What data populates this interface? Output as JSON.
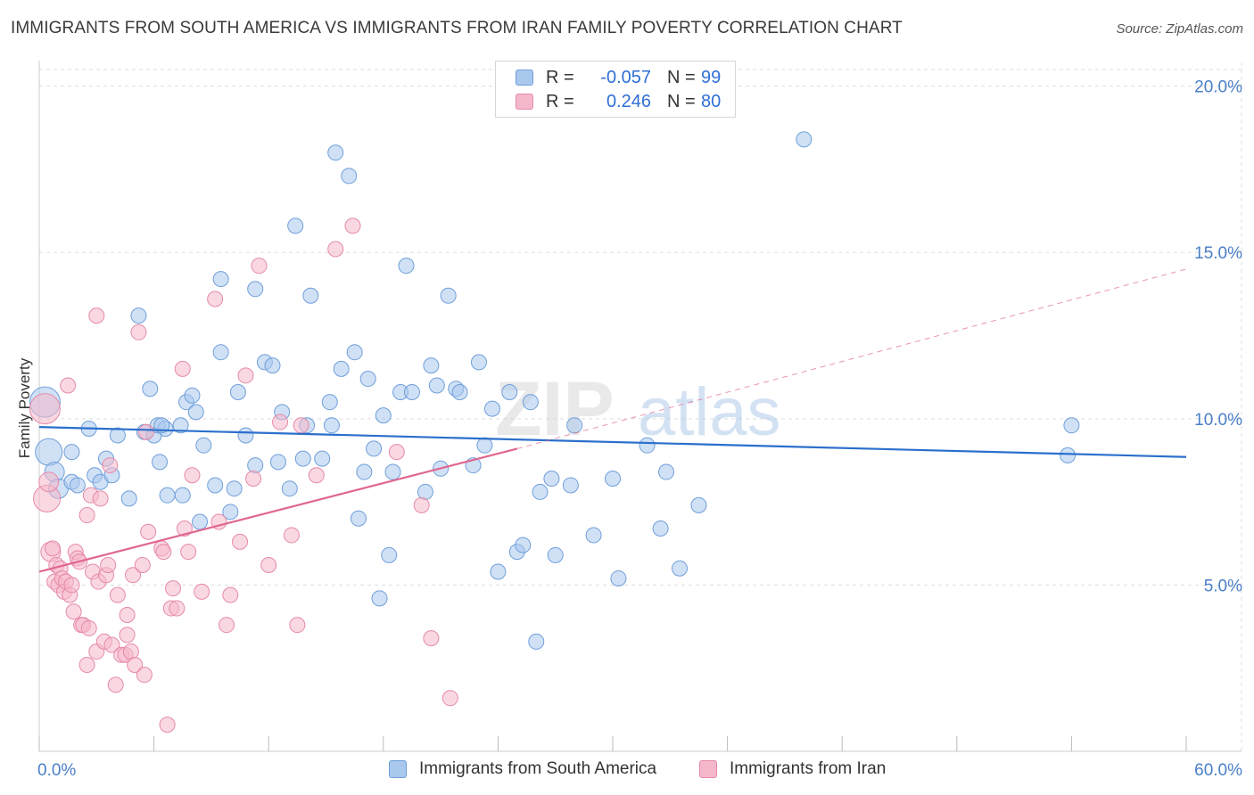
{
  "header": {
    "title": "IMMIGRANTS FROM SOUTH AMERICA VS IMMIGRANTS FROM IRAN FAMILY POVERTY CORRELATION CHART",
    "source": "Source: ZipAtlas.com"
  },
  "watermark": {
    "zip": "ZIP",
    "atlas": "atlas"
  },
  "legend": {
    "rows": [
      {
        "r_label": "R =",
        "r_value": "-0.057",
        "n_label": "N =",
        "n_value": "99"
      },
      {
        "r_label": "R =",
        "r_value": "0.246",
        "n_label": "N =",
        "n_value": "80"
      }
    ]
  },
  "bottom_legend": {
    "series1": "Immigrants from South America",
    "series2": "Immigrants from Iran"
  },
  "colors": {
    "series1_fill": "#a9c8ee",
    "series1_stroke": "#6f9fd9",
    "series1_line": "#2b6fcc",
    "series2_fill": "#f5b8cb",
    "series2_stroke": "#e58aa8",
    "series2_line": "#e0668f",
    "grid": "#dddddd",
    "tick_label": "#4a7fc8"
  },
  "chart_data": {
    "type": "scatter",
    "title": "IMMIGRANTS FROM SOUTH AMERICA VS IMMIGRANTS FROM IRAN FAMILY POVERTY CORRELATION CHART",
    "xlabel": "",
    "ylabel": "Family Poverty",
    "xlim": [
      0,
      60
    ],
    "ylim": [
      0,
      20.5
    ],
    "x_tick_labels": [
      "0.0%",
      "60.0%"
    ],
    "y_ticks": [
      5,
      10,
      15,
      20
    ],
    "y_tick_labels": [
      "5.0%",
      "10.0%",
      "15.0%",
      "20.0%"
    ],
    "grid": true,
    "legend_position": "top-center",
    "series": [
      {
        "name": "Immigrants from South America",
        "R": -0.057,
        "N": 99,
        "trend": {
          "x": [
            0,
            60
          ],
          "y": [
            9.75,
            8.85
          ],
          "style": "solid"
        },
        "points": [
          [
            0.3,
            10.5
          ],
          [
            0.5,
            9.0
          ],
          [
            0.8,
            8.4
          ],
          [
            1.0,
            7.9
          ],
          [
            1.7,
            8.1
          ],
          [
            1.7,
            9.0
          ],
          [
            2.0,
            8.0
          ],
          [
            2.6,
            9.7
          ],
          [
            2.9,
            8.3
          ],
          [
            3.2,
            8.1
          ],
          [
            3.5,
            8.8
          ],
          [
            3.8,
            8.3
          ],
          [
            4.1,
            9.5
          ],
          [
            4.7,
            7.6
          ],
          [
            5.2,
            13.1
          ],
          [
            5.5,
            9.6
          ],
          [
            5.8,
            10.9
          ],
          [
            6.0,
            9.5
          ],
          [
            6.2,
            9.8
          ],
          [
            6.6,
            9.7
          ],
          [
            6.4,
            9.8
          ],
          [
            6.3,
            8.7
          ],
          [
            6.7,
            7.7
          ],
          [
            7.5,
            7.7
          ],
          [
            7.4,
            9.8
          ],
          [
            7.7,
            10.5
          ],
          [
            8.0,
            10.7
          ],
          [
            8.2,
            10.2
          ],
          [
            8.4,
            6.9
          ],
          [
            8.6,
            9.2
          ],
          [
            9.2,
            8.0
          ],
          [
            9.5,
            12.0
          ],
          [
            9.5,
            14.2
          ],
          [
            10.0,
            7.2
          ],
          [
            10.2,
            7.9
          ],
          [
            10.4,
            10.8
          ],
          [
            10.8,
            9.5
          ],
          [
            11.3,
            8.6
          ],
          [
            11.3,
            13.9
          ],
          [
            11.8,
            11.7
          ],
          [
            12.2,
            11.6
          ],
          [
            12.5,
            8.7
          ],
          [
            12.7,
            10.2
          ],
          [
            13.1,
            7.9
          ],
          [
            13.4,
            15.8
          ],
          [
            13.8,
            8.8
          ],
          [
            14.0,
            9.8
          ],
          [
            14.2,
            13.7
          ],
          [
            14.8,
            8.8
          ],
          [
            15.2,
            10.5
          ],
          [
            15.3,
            9.8
          ],
          [
            15.5,
            18.0
          ],
          [
            15.8,
            11.5
          ],
          [
            16.2,
            17.3
          ],
          [
            16.5,
            12.0
          ],
          [
            16.7,
            7.0
          ],
          [
            17.0,
            8.4
          ],
          [
            17.2,
            11.2
          ],
          [
            17.5,
            9.1
          ],
          [
            17.8,
            4.6
          ],
          [
            18.0,
            10.1
          ],
          [
            18.3,
            5.9
          ],
          [
            18.5,
            8.4
          ],
          [
            18.9,
            10.8
          ],
          [
            19.2,
            14.6
          ],
          [
            19.5,
            10.8
          ],
          [
            20.2,
            7.8
          ],
          [
            20.5,
            11.6
          ],
          [
            20.8,
            11.0
          ],
          [
            21.0,
            8.5
          ],
          [
            21.4,
            13.7
          ],
          [
            21.8,
            10.9
          ],
          [
            22.0,
            10.8
          ],
          [
            22.7,
            8.6
          ],
          [
            23.0,
            11.7
          ],
          [
            23.3,
            9.2
          ],
          [
            23.7,
            10.3
          ],
          [
            24.0,
            5.4
          ],
          [
            24.6,
            10.8
          ],
          [
            25.0,
            6.0
          ],
          [
            25.3,
            6.2
          ],
          [
            25.7,
            10.5
          ],
          [
            26.0,
            3.3
          ],
          [
            26.2,
            7.8
          ],
          [
            26.8,
            8.2
          ],
          [
            27.0,
            5.9
          ],
          [
            27.8,
            8.0
          ],
          [
            28.0,
            9.8
          ],
          [
            29.0,
            6.5
          ],
          [
            30.0,
            8.2
          ],
          [
            30.3,
            5.2
          ],
          [
            31.8,
            9.2
          ],
          [
            32.5,
            6.7
          ],
          [
            32.8,
            8.4
          ],
          [
            33.5,
            5.5
          ],
          [
            34.5,
            7.4
          ],
          [
            40.0,
            18.4
          ],
          [
            54.0,
            9.8
          ],
          [
            53.8,
            8.9
          ]
        ]
      },
      {
        "name": "Immigrants from Iran",
        "R": 0.246,
        "N": 80,
        "trend": {
          "x": [
            0,
            25
          ],
          "y": [
            5.4,
            9.1
          ],
          "style": "solid",
          "extended_to": [
            60,
            14.5
          ],
          "extended_style": "dashed"
        },
        "points": [
          [
            0.3,
            10.3
          ],
          [
            0.4,
            7.6
          ],
          [
            0.5,
            8.1
          ],
          [
            0.6,
            6.0
          ],
          [
            0.7,
            6.1
          ],
          [
            0.8,
            5.1
          ],
          [
            0.9,
            5.6
          ],
          [
            1.0,
            5.0
          ],
          [
            1.1,
            5.5
          ],
          [
            1.2,
            5.2
          ],
          [
            1.3,
            4.8
          ],
          [
            1.4,
            5.1
          ],
          [
            1.5,
            11.0
          ],
          [
            1.6,
            4.7
          ],
          [
            1.7,
            5.0
          ],
          [
            1.8,
            4.2
          ],
          [
            1.9,
            6.0
          ],
          [
            2.0,
            5.8
          ],
          [
            2.1,
            5.7
          ],
          [
            2.2,
            3.8
          ],
          [
            2.3,
            3.8
          ],
          [
            2.5,
            7.1
          ],
          [
            2.5,
            2.6
          ],
          [
            2.6,
            3.7
          ],
          [
            2.7,
            7.7
          ],
          [
            2.8,
            5.4
          ],
          [
            3.0,
            3.0
          ],
          [
            3.0,
            13.1
          ],
          [
            3.1,
            5.1
          ],
          [
            3.2,
            7.6
          ],
          [
            3.4,
            3.3
          ],
          [
            3.5,
            5.3
          ],
          [
            3.6,
            5.6
          ],
          [
            3.7,
            8.6
          ],
          [
            3.8,
            3.2
          ],
          [
            4.0,
            2.0
          ],
          [
            4.1,
            4.7
          ],
          [
            4.3,
            2.9
          ],
          [
            4.5,
            2.9
          ],
          [
            4.6,
            4.1
          ],
          [
            4.6,
            3.5
          ],
          [
            4.8,
            3.0
          ],
          [
            4.9,
            5.3
          ],
          [
            5.0,
            2.6
          ],
          [
            5.2,
            12.6
          ],
          [
            5.4,
            5.6
          ],
          [
            5.5,
            2.3
          ],
          [
            5.6,
            9.6
          ],
          [
            5.7,
            6.6
          ],
          [
            6.4,
            6.1
          ],
          [
            6.5,
            6.0
          ],
          [
            6.7,
            0.8
          ],
          [
            6.9,
            4.3
          ],
          [
            7.0,
            4.9
          ],
          [
            7.5,
            11.5
          ],
          [
            7.6,
            6.7
          ],
          [
            7.8,
            6.0
          ],
          [
            8.0,
            8.3
          ],
          [
            8.5,
            4.8
          ],
          [
            9.2,
            13.6
          ],
          [
            9.4,
            6.9
          ],
          [
            9.8,
            3.8
          ],
          [
            10.0,
            4.7
          ],
          [
            10.5,
            6.3
          ],
          [
            10.8,
            11.3
          ],
          [
            11.2,
            8.2
          ],
          [
            11.5,
            14.6
          ],
          [
            12.0,
            5.6
          ],
          [
            12.6,
            9.9
          ],
          [
            13.2,
            6.5
          ],
          [
            13.5,
            3.8
          ],
          [
            13.7,
            9.8
          ],
          [
            14.5,
            8.3
          ],
          [
            15.5,
            15.1
          ],
          [
            16.4,
            15.8
          ],
          [
            18.7,
            9.0
          ],
          [
            20.0,
            7.4
          ],
          [
            20.5,
            3.4
          ],
          [
            21.5,
            1.6
          ],
          [
            7.2,
            4.3
          ]
        ]
      }
    ]
  }
}
